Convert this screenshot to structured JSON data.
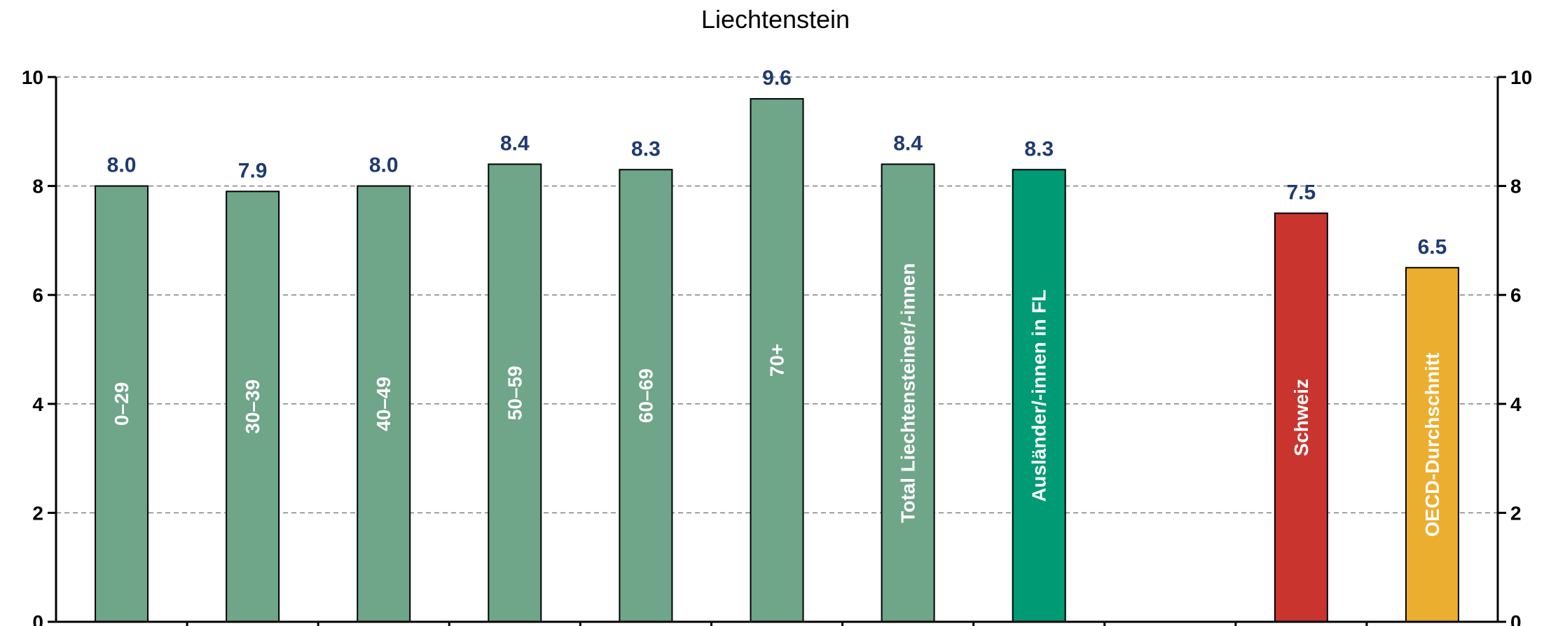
{
  "chart_data": {
    "type": "bar",
    "title": "Liechtenstein",
    "categories": [
      "0–29",
      "30–39",
      "40–49",
      "50–59",
      "60–69",
      "70+",
      "Total Liechtensteiner/-innen",
      "Ausländer/-innen in FL",
      "",
      "Schweiz",
      "OECD-Durchschnitt"
    ],
    "values": [
      8.0,
      7.9,
      8.0,
      8.4,
      8.3,
      9.6,
      8.4,
      8.3,
      null,
      7.5,
      6.5
    ],
    "value_labels": [
      "8.0",
      "7.9",
      "8.0",
      "8.4",
      "8.3",
      "9.6",
      "8.4",
      "8.3",
      "",
      "7.5",
      "6.5"
    ],
    "bar_colors": [
      "#6fa588",
      "#6fa588",
      "#6fa588",
      "#6fa588",
      "#6fa588",
      "#6fa588",
      "#6fa588",
      "#009a74",
      "",
      "#c9342f",
      "#ecae2f"
    ],
    "ylim": [
      0,
      10
    ],
    "yticks": [
      "0",
      "2",
      "4",
      "6",
      "8",
      "10"
    ],
    "grid": true,
    "secondary_y_axis": true,
    "xlabel": "",
    "ylabel": ""
  },
  "colors": {
    "label_color": "#1f3a73",
    "grid_color": "#808080"
  }
}
